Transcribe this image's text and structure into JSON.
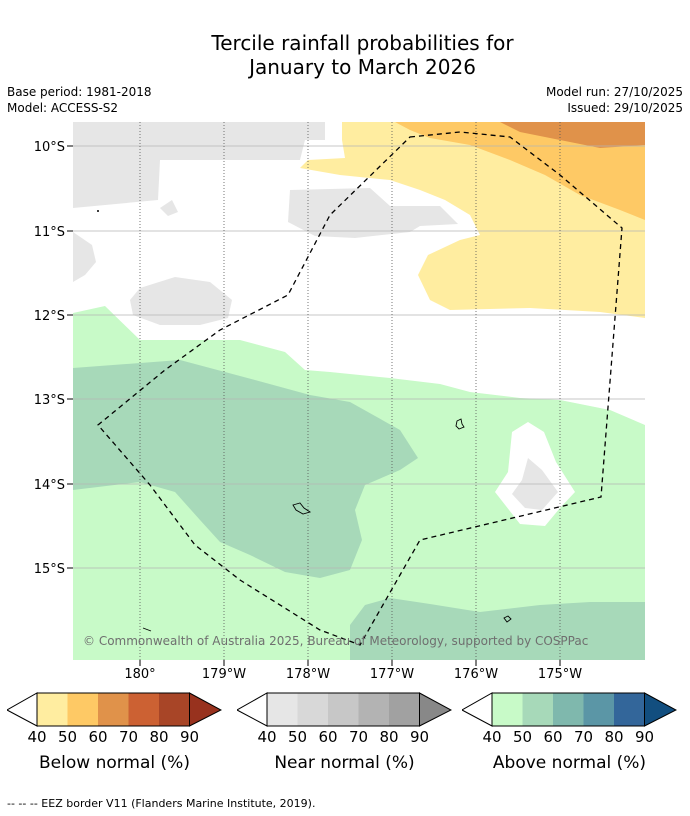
{
  "title_line1": "Tercile rainfall probabilities for",
  "title_line2": "January to March 2026",
  "base_period": "Base period: 1981-2018",
  "model": "Model: ACCESS-S2",
  "model_run": "Model run: 27/10/2025",
  "issued": "Issued: 29/10/2025",
  "copyright": "© Commonwealth of Australia 2025, Bureau of Meteorology, supported by COSPPac",
  "lat_labels": [
    "10°S",
    "11°S",
    "12°S",
    "13°S",
    "14°S",
    "15°S"
  ],
  "lon_labels": [
    "180°",
    "179°W",
    "178°W",
    "177°W",
    "176°W",
    "175°W"
  ],
  "legends": [
    {
      "title": "Below normal (%)",
      "ticks": [
        "40",
        "50",
        "60",
        "70",
        "80",
        "90"
      ],
      "colors": [
        "#ffeda0",
        "#fec965",
        "#e0924a",
        "#cc6133",
        "#a84527",
        "#98321e"
      ]
    },
    {
      "title": "Near normal (%)",
      "ticks": [
        "40",
        "50",
        "60",
        "70",
        "80",
        "90"
      ],
      "colors": [
        "#e6e6e6",
        "#d8d8d8",
        "#c7c7c7",
        "#b3b3b3",
        "#a1a1a1",
        "#888888"
      ]
    },
    {
      "title": "Above normal (%)",
      "ticks": [
        "40",
        "50",
        "60",
        "70",
        "80",
        "90"
      ],
      "colors": [
        "#c8fac8",
        "#a7d9b9",
        "#7fb8ad",
        "#5b96a6",
        "#33669a",
        "#124e7f"
      ]
    }
  ],
  "footer": "--  --  -- EEZ border V11 (Flanders Marine Institute, 2019)."
}
